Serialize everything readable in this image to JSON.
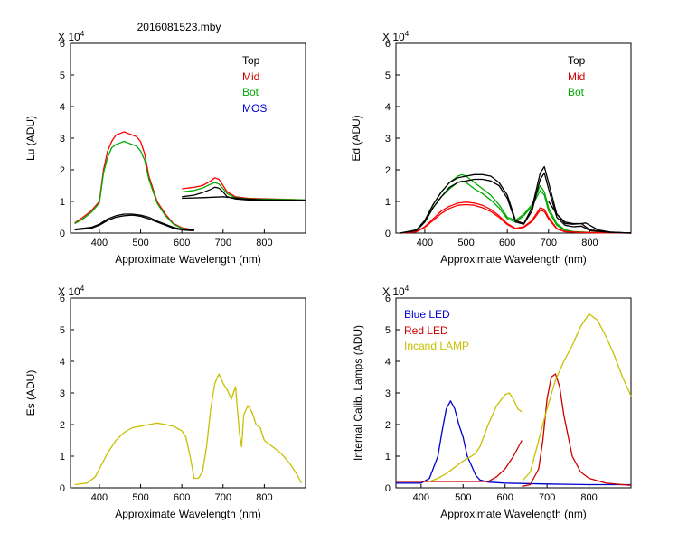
{
  "figure_title": "2016081523.mby",
  "chart_data": [
    {
      "type": "line",
      "id": "lu",
      "xlabel": "Approximate Wavelength (nm)",
      "ylabel": "Lu (ADU)",
      "exponent_label": "X 10",
      "exponent_power": "4",
      "xlim": [
        330,
        900
      ],
      "ylim": [
        0,
        6
      ],
      "xticks": [
        400,
        500,
        600,
        700,
        800
      ],
      "yticks": [
        0,
        1,
        2,
        3,
        4,
        5,
        6
      ],
      "legend": [
        "Top",
        "Mid",
        "Bot",
        "MOS"
      ],
      "legend_colors": [
        "#000000",
        "#cc0000",
        "#00aa00",
        "#0000cc"
      ],
      "series": [
        {
          "name": "Mid",
          "color": "#ff0000",
          "x": [
            340,
            360,
            380,
            400,
            410,
            420,
            430,
            440,
            450,
            460,
            470,
            480,
            490,
            500,
            510,
            520,
            540,
            560,
            580,
            600,
            620,
            630
          ],
          "y": [
            0.32,
            0.5,
            0.7,
            1.0,
            2.0,
            2.6,
            2.9,
            3.1,
            3.15,
            3.2,
            3.15,
            3.1,
            3.05,
            2.9,
            2.5,
            1.8,
            1.0,
            0.6,
            0.3,
            0.17,
            0.12,
            0.12
          ]
        },
        {
          "name": "Bot",
          "color": "#00aa00",
          "x": [
            340,
            360,
            380,
            400,
            410,
            420,
            430,
            440,
            450,
            460,
            470,
            480,
            490,
            500,
            510,
            520,
            540,
            560,
            580,
            600,
            620,
            630
          ],
          "y": [
            0.3,
            0.45,
            0.65,
            0.95,
            1.9,
            2.4,
            2.7,
            2.8,
            2.85,
            2.9,
            2.85,
            2.8,
            2.75,
            2.6,
            2.3,
            1.7,
            0.95,
            0.55,
            0.28,
            0.15,
            0.1,
            0.1
          ]
        },
        {
          "name": "Top",
          "color": "#000000",
          "x": [
            340,
            380,
            400,
            420,
            440,
            460,
            480,
            500,
            520,
            540,
            560,
            580,
            600,
            620,
            630
          ],
          "y": [
            0.1,
            0.15,
            0.25,
            0.4,
            0.5,
            0.55,
            0.57,
            0.53,
            0.45,
            0.35,
            0.25,
            0.15,
            0.1,
            0.08,
            0.08
          ]
        },
        {
          "name": "Top",
          "color": "#000000",
          "x": [
            340,
            380,
            400,
            420,
            440,
            460,
            480,
            500,
            520,
            540,
            560,
            580,
            600,
            620,
            630
          ],
          "y": [
            0.12,
            0.18,
            0.28,
            0.45,
            0.55,
            0.6,
            0.6,
            0.57,
            0.5,
            0.38,
            0.28,
            0.18,
            0.12,
            0.1,
            0.1
          ]
        },
        {
          "name": "Mid",
          "color": "#ff0000",
          "x": [
            600,
            630,
            650,
            670,
            680,
            690,
            700,
            710,
            730,
            760,
            900
          ],
          "y": [
            1.4,
            1.45,
            1.5,
            1.65,
            1.75,
            1.7,
            1.5,
            1.3,
            1.15,
            1.1,
            1.05
          ]
        },
        {
          "name": "Bot",
          "color": "#00aa00",
          "x": [
            600,
            630,
            650,
            670,
            680,
            690,
            700,
            710,
            730,
            760,
            900
          ],
          "y": [
            1.3,
            1.35,
            1.42,
            1.55,
            1.6,
            1.55,
            1.4,
            1.25,
            1.12,
            1.08,
            1.05
          ]
        },
        {
          "name": "Top",
          "color": "#000000",
          "x": [
            600,
            630,
            650,
            670,
            680,
            690,
            700,
            710,
            730,
            760,
            900
          ],
          "y": [
            1.15,
            1.2,
            1.28,
            1.38,
            1.45,
            1.42,
            1.3,
            1.15,
            1.08,
            1.05,
            1.03
          ]
        },
        {
          "name": "Top",
          "color": "#000000",
          "x": [
            600,
            650,
            700,
            750,
            800,
            850,
            900
          ],
          "y": [
            1.1,
            1.12,
            1.15,
            1.08,
            1.05,
            1.04,
            1.03
          ]
        }
      ]
    },
    {
      "type": "line",
      "id": "ed",
      "xlabel": "Approximate Wavelength (nm)",
      "ylabel": "Ed  (ADU)",
      "exponent_label": "X 10",
      "exponent_power": "4",
      "xlim": [
        330,
        900
      ],
      "ylim": [
        0,
        6
      ],
      "xticks": [
        400,
        500,
        600,
        700,
        800
      ],
      "yticks": [
        0,
        1,
        2,
        3,
        4,
        5,
        6
      ],
      "legend": [
        "Top",
        "Mid",
        "Bot"
      ],
      "legend_colors": [
        "#000000",
        "#cc0000",
        "#00aa00"
      ],
      "series": [
        {
          "name": "Bot",
          "color": "#00aa00",
          "x": [
            340,
            380,
            400,
            420,
            440,
            460,
            480,
            490,
            500,
            510,
            520,
            540,
            560,
            580,
            600,
            620,
            640,
            660,
            680,
            690,
            700,
            720,
            740,
            760,
            800,
            850,
            900
          ],
          "y": [
            0.0,
            0.1,
            0.4,
            0.9,
            1.3,
            1.6,
            1.8,
            1.85,
            1.8,
            1.7,
            1.6,
            1.4,
            1.2,
            0.9,
            0.5,
            0.4,
            0.6,
            0.9,
            1.5,
            1.3,
            0.8,
            0.3,
            0.1,
            0.05,
            0.02,
            0.01,
            0.0
          ]
        },
        {
          "name": "Bot",
          "color": "#00aa00",
          "x": [
            340,
            380,
            400,
            420,
            440,
            460,
            480,
            490,
            500,
            510,
            520,
            540,
            560,
            580,
            600,
            620,
            640,
            660,
            680,
            690,
            700,
            720,
            740,
            760,
            800,
            850,
            900
          ],
          "y": [
            0.0,
            0.08,
            0.35,
            0.8,
            1.15,
            1.4,
            1.6,
            1.65,
            1.6,
            1.5,
            1.4,
            1.25,
            1.05,
            0.8,
            0.45,
            0.35,
            0.55,
            0.85,
            1.35,
            1.2,
            0.7,
            0.25,
            0.08,
            0.04,
            0.02,
            0.01,
            0.0
          ]
        },
        {
          "name": "Mid",
          "color": "#ff0000",
          "x": [
            340,
            380,
            400,
            420,
            440,
            460,
            480,
            500,
            520,
            540,
            560,
            580,
            600,
            620,
            640,
            660,
            680,
            690,
            700,
            720,
            740,
            780,
            900
          ],
          "y": [
            0.0,
            0.05,
            0.2,
            0.45,
            0.7,
            0.85,
            0.95,
            0.98,
            0.95,
            0.88,
            0.75,
            0.55,
            0.3,
            0.15,
            0.2,
            0.4,
            0.8,
            0.75,
            0.5,
            0.15,
            0.05,
            0.02,
            0.0
          ]
        },
        {
          "name": "Mid",
          "color": "#ff0000",
          "x": [
            340,
            380,
            400,
            420,
            440,
            460,
            480,
            500,
            520,
            540,
            560,
            580,
            600,
            620,
            640,
            660,
            680,
            690,
            700,
            720,
            740,
            780,
            900
          ],
          "y": [
            0.0,
            0.04,
            0.18,
            0.4,
            0.62,
            0.78,
            0.88,
            0.9,
            0.88,
            0.8,
            0.68,
            0.5,
            0.27,
            0.13,
            0.18,
            0.36,
            0.72,
            0.68,
            0.45,
            0.13,
            0.04,
            0.02,
            0.0
          ]
        },
        {
          "name": "Top",
          "color": "#000000",
          "x": [
            340,
            380,
            400,
            420,
            440,
            460,
            480,
            500,
            520,
            540,
            560,
            580,
            600,
            620,
            640,
            660,
            680,
            690,
            700,
            720,
            740,
            760,
            780,
            800,
            850,
            900
          ],
          "y": [
            0.0,
            0.1,
            0.4,
            0.9,
            1.3,
            1.6,
            1.75,
            1.8,
            1.85,
            1.85,
            1.8,
            1.6,
            1.2,
            0.4,
            0.3,
            0.8,
            1.9,
            2.1,
            1.6,
            0.6,
            0.3,
            0.28,
            0.3,
            0.1,
            0.03,
            0.0
          ]
        },
        {
          "name": "Top",
          "color": "#000000",
          "x": [
            340,
            380,
            400,
            420,
            440,
            460,
            480,
            500,
            520,
            540,
            560,
            580,
            600,
            620,
            640,
            660,
            680,
            690,
            700,
            720,
            740,
            760,
            780,
            800,
            850,
            900
          ],
          "y": [
            0.0,
            0.08,
            0.35,
            0.8,
            1.15,
            1.45,
            1.6,
            1.65,
            1.7,
            1.7,
            1.65,
            1.5,
            1.1,
            0.35,
            0.28,
            0.7,
            1.7,
            1.9,
            1.4,
            0.5,
            0.25,
            0.2,
            0.22,
            0.08,
            0.02,
            0.0
          ]
        },
        {
          "name": "Top",
          "color": "#000000",
          "x": [
            700,
            720,
            740,
            760,
            780,
            790,
            800,
            820,
            850,
            900
          ],
          "y": [
            1.0,
            0.6,
            0.35,
            0.3,
            0.3,
            0.32,
            0.25,
            0.1,
            0.03,
            0.0
          ]
        }
      ]
    },
    {
      "type": "line",
      "id": "es",
      "xlabel": "Approximate Wavelength (nm)",
      "ylabel": "Es  (ADU)",
      "exponent_label": "X 10",
      "exponent_power": "4",
      "xlim": [
        330,
        900
      ],
      "ylim": [
        0,
        6
      ],
      "xticks": [
        400,
        500,
        600,
        700,
        800
      ],
      "yticks": [
        0,
        1,
        2,
        3,
        4,
        5,
        6
      ],
      "series": [
        {
          "name": "Es",
          "color": "#c8c000",
          "x": [
            340,
            370,
            390,
            400,
            420,
            440,
            460,
            480,
            500,
            520,
            540,
            560,
            580,
            600,
            610,
            620,
            630,
            640,
            650,
            660,
            670,
            680,
            690,
            700,
            710,
            720,
            730,
            740,
            745,
            750,
            760,
            770,
            780,
            790,
            800,
            820,
            840,
            860,
            880,
            890
          ],
          "y": [
            0.1,
            0.15,
            0.35,
            0.6,
            1.1,
            1.5,
            1.75,
            1.9,
            1.95,
            2.0,
            2.05,
            2.0,
            1.95,
            1.8,
            1.6,
            1.0,
            0.3,
            0.3,
            0.5,
            1.3,
            2.5,
            3.3,
            3.6,
            3.3,
            3.1,
            2.8,
            3.2,
            1.7,
            1.3,
            2.3,
            2.6,
            2.4,
            2.0,
            1.9,
            1.5,
            1.3,
            1.1,
            0.8,
            0.4,
            0.15
          ]
        }
      ]
    },
    {
      "type": "line",
      "id": "lamps",
      "xlabel": "Approximate Wavelength (nm)",
      "ylabel": "Internal Calib. Lamps (ADU)",
      "exponent_label": "X 10",
      "exponent_power": "4",
      "xlim": [
        340,
        900
      ],
      "ylim": [
        0,
        6
      ],
      "xticks": [
        400,
        500,
        600,
        700,
        800
      ],
      "yticks": [
        0,
        1,
        2,
        3,
        4,
        5,
        6
      ],
      "legend": [
        "Blue LED",
        "Red LED",
        "Incand LAMP"
      ],
      "legend_colors": [
        "#0000cc",
        "#cc0000",
        "#c8c000"
      ],
      "series": [
        {
          "name": "Blue LED",
          "color": "#0000cc",
          "x": [
            340,
            400,
            420,
            440,
            450,
            460,
            470,
            480,
            490,
            500,
            510,
            520,
            530,
            540,
            560,
            600,
            700,
            800,
            900
          ],
          "y": [
            0.15,
            0.15,
            0.3,
            1.0,
            1.8,
            2.5,
            2.75,
            2.5,
            2.0,
            1.6,
            1.0,
            0.7,
            0.4,
            0.25,
            0.18,
            0.15,
            0.12,
            0.1,
            0.1
          ]
        },
        {
          "name": "Red LED",
          "color": "#cc0000",
          "x": [
            340,
            560,
            580,
            600,
            620,
            640
          ],
          "y": [
            0.2,
            0.2,
            0.35,
            0.6,
            1.0,
            1.5
          ]
        },
        {
          "name": "Red LED",
          "color": "#cc0000",
          "x": [
            640,
            660,
            680,
            690,
            700,
            710,
            720,
            730,
            740,
            760,
            780,
            800,
            840,
            880,
            900
          ],
          "y": [
            0.05,
            0.1,
            0.6,
            1.5,
            2.8,
            3.5,
            3.6,
            3.2,
            2.3,
            1.0,
            0.5,
            0.3,
            0.15,
            0.1,
            0.08
          ]
        },
        {
          "name": "Incand LAMP",
          "color": "#c8c000",
          "x": [
            420,
            440,
            460,
            480,
            500,
            520,
            530,
            540,
            560,
            580,
            600,
            610,
            620,
            630,
            640
          ],
          "y": [
            0.2,
            0.3,
            0.45,
            0.65,
            0.85,
            1.0,
            1.1,
            1.3,
            2.0,
            2.6,
            2.95,
            3.0,
            2.8,
            2.5,
            2.4
          ]
        },
        {
          "name": "Incand LAMP",
          "color": "#c8c000",
          "x": [
            640,
            660,
            680,
            700,
            720,
            740,
            760,
            780,
            800,
            820,
            840,
            860,
            880,
            900
          ],
          "y": [
            0.2,
            0.5,
            1.5,
            2.5,
            3.4,
            4.0,
            4.5,
            5.1,
            5.5,
            5.3,
            4.8,
            4.2,
            3.5,
            2.9
          ]
        }
      ]
    }
  ]
}
